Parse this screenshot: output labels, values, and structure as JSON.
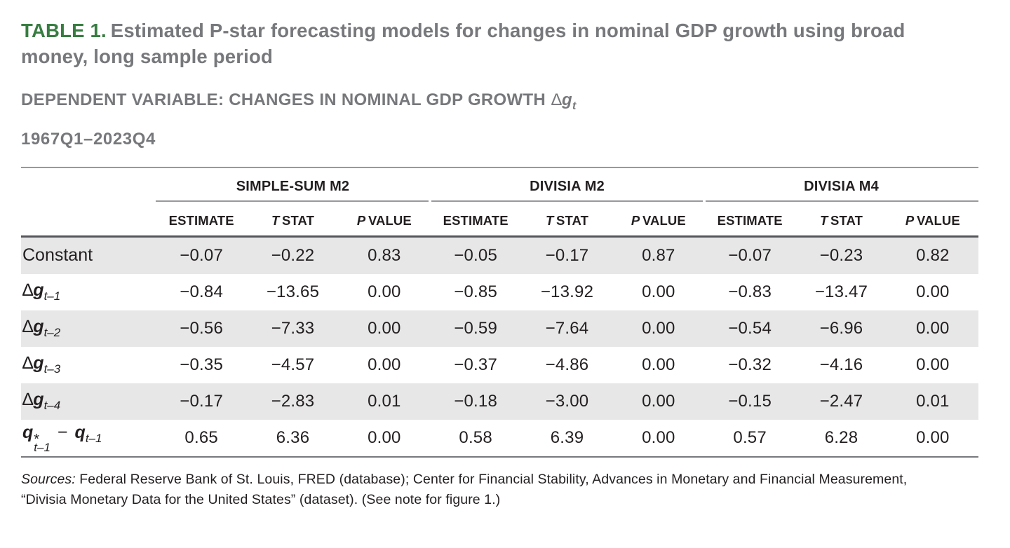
{
  "page": {
    "title": {
      "tag": "TABLE 1.",
      "line1": "Estimated P-star forecasting models for changes in nominal GDP growth using broad",
      "line2": "money, long sample period"
    },
    "subtitle": {
      "text": "DEPENDENT VARIABLE: CHANGES IN NOMINAL GDP GROWTH",
      "delta": "∆",
      "variable": "g",
      "subscript": "t"
    },
    "period": "1967Q1–2023Q4"
  },
  "table": {
    "groups": [
      "SIMPLE-SUM M2",
      "DIVISIA M2",
      "DIVISIA M4"
    ],
    "col_headers": {
      "estimate": "ESTIMATE",
      "t": "T",
      "stat": "STAT",
      "p": "P",
      "value": "VALUE"
    },
    "rows": [
      {
        "label": "Constant",
        "cells": [
          "−0.07",
          "−0.22",
          "0.83",
          "−0.05",
          "−0.17",
          "0.87",
          "−0.07",
          "−0.23",
          "0.82"
        ]
      },
      {
        "delta": "∆",
        "var": "g",
        "sub": "t–1",
        "cells": [
          "−0.84",
          "−13.65",
          "0.00",
          "−0.85",
          "−13.92",
          "0.00",
          "−0.83",
          "−13.47",
          "0.00"
        ]
      },
      {
        "delta": "∆",
        "var": "g",
        "sub": "t–2",
        "cells": [
          "−0.56",
          "−7.33",
          "0.00",
          "−0.59",
          "−7.64",
          "0.00",
          "−0.54",
          "−6.96",
          "0.00"
        ]
      },
      {
        "delta": "∆",
        "var": "g",
        "sub": "t–3",
        "cells": [
          "−0.35",
          "−4.57",
          "0.00",
          "−0.37",
          "−4.86",
          "0.00",
          "−0.32",
          "−4.16",
          "0.00"
        ]
      },
      {
        "delta": "∆",
        "var": "g",
        "sub": "t–4",
        "cells": [
          "−0.17",
          "−2.83",
          "0.01",
          "−0.18",
          "−3.00",
          "0.00",
          "−0.15",
          "−2.47",
          "0.01"
        ]
      },
      {
        "q1": "q",
        "star": "*",
        "sub1": "t–1",
        "minus": "−",
        "q2": "q",
        "sub2": "t–1",
        "cells": [
          "0.65",
          "6.36",
          "0.00",
          "0.58",
          "6.39",
          "0.00",
          "0.57",
          "6.28",
          "0.00"
        ]
      }
    ]
  },
  "sources": {
    "label": "Sources:",
    "line1": " Federal Reserve Bank of St. Louis, FRED (database); Center for Financial Stability, Advances in Monetary and Financial Measurement,",
    "line2": "“Divisia Monetary Data for the United States” (dataset). (See note for figure 1.)"
  }
}
